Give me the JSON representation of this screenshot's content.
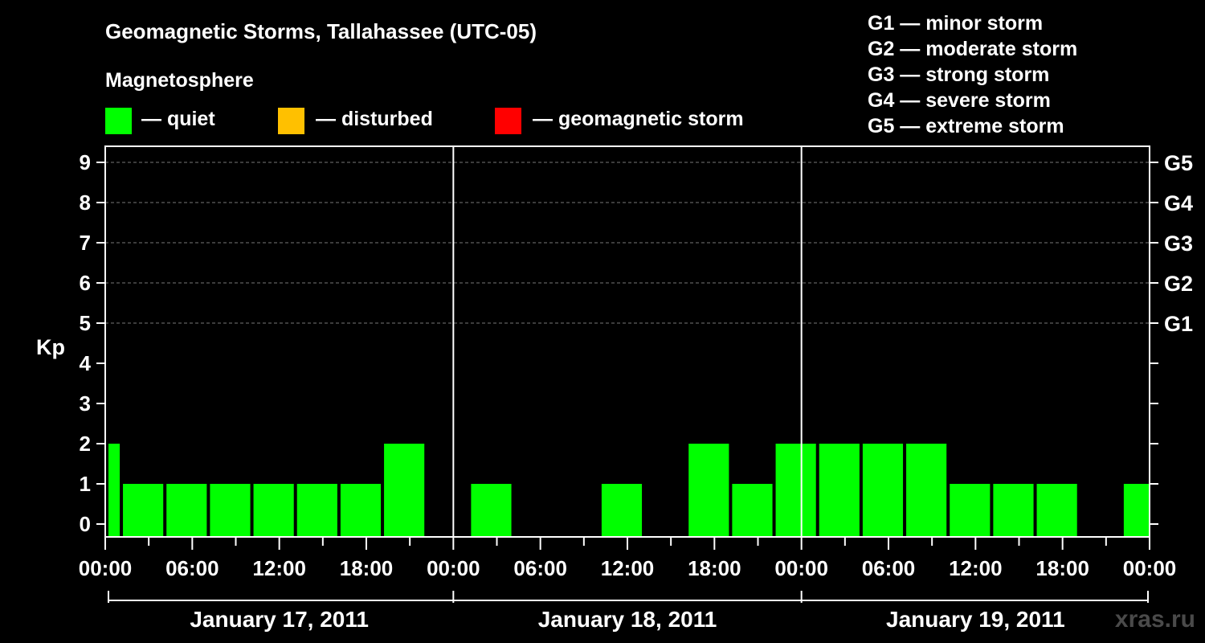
{
  "title": "Geomagnetic Storms, Tallahassee (UTC-05)",
  "subtitle": "Magnetosphere",
  "legend": [
    {
      "label": "— quiet",
      "color": "#00ff00"
    },
    {
      "label": "— disturbed",
      "color": "#ffc000"
    },
    {
      "label": "— geomagnetic storm",
      "color": "#ff0000"
    }
  ],
  "storm_scale": [
    "G1 — minor storm",
    "G2 — moderate storm",
    "G3 — strong storm",
    "G4 — severe storm",
    "G5 — extreme storm"
  ],
  "watermark": "xras.ru",
  "chart_data": {
    "type": "bar",
    "ylabel": "Kp",
    "ylim": [
      0,
      9
    ],
    "yticks": [
      "0",
      "1",
      "2",
      "3",
      "4",
      "5",
      "6",
      "7",
      "8",
      "9"
    ],
    "right_axis": [
      {
        "kp": 5,
        "label": "G1"
      },
      {
        "kp": 6,
        "label": "G2"
      },
      {
        "kp": 7,
        "label": "G3"
      },
      {
        "kp": 8,
        "label": "G4"
      },
      {
        "kp": 9,
        "label": "G5"
      }
    ],
    "xticks": [
      "00:00",
      "06:00",
      "12:00",
      "18:00",
      "00:00",
      "06:00",
      "12:00",
      "18:00",
      "00:00",
      "06:00",
      "12:00",
      "18:00",
      "00:00"
    ],
    "days": [
      "January 17, 2011",
      "January 18, 2011",
      "January 19, 2011"
    ],
    "grid": "dashed horizontal at Kp 5-9",
    "bar_color": "#00ff00",
    "bars": [
      {
        "start_hour": 0,
        "end_hour": 1,
        "kp": 2
      },
      {
        "start_hour": 1,
        "end_hour": 4,
        "kp": 1
      },
      {
        "start_hour": 4,
        "end_hour": 7,
        "kp": 1
      },
      {
        "start_hour": 7,
        "end_hour": 10,
        "kp": 1
      },
      {
        "start_hour": 10,
        "end_hour": 13,
        "kp": 1
      },
      {
        "start_hour": 13,
        "end_hour": 16,
        "kp": 1
      },
      {
        "start_hour": 16,
        "end_hour": 19,
        "kp": 1
      },
      {
        "start_hour": 19,
        "end_hour": 22,
        "kp": 2
      },
      {
        "start_hour": 25,
        "end_hour": 28,
        "kp": 1
      },
      {
        "start_hour": 34,
        "end_hour": 37,
        "kp": 1
      },
      {
        "start_hour": 40,
        "end_hour": 43,
        "kp": 2
      },
      {
        "start_hour": 43,
        "end_hour": 46,
        "kp": 1
      },
      {
        "start_hour": 46,
        "end_hour": 49,
        "kp": 2
      },
      {
        "start_hour": 49,
        "end_hour": 52,
        "kp": 2
      },
      {
        "start_hour": 52,
        "end_hour": 55,
        "kp": 2
      },
      {
        "start_hour": 55,
        "end_hour": 58,
        "kp": 2
      },
      {
        "start_hour": 58,
        "end_hour": 61,
        "kp": 1
      },
      {
        "start_hour": 61,
        "end_hour": 64,
        "kp": 1
      },
      {
        "start_hour": 64,
        "end_hour": 67,
        "kp": 1
      },
      {
        "start_hour": 70,
        "end_hour": 72,
        "kp": 1
      }
    ]
  }
}
